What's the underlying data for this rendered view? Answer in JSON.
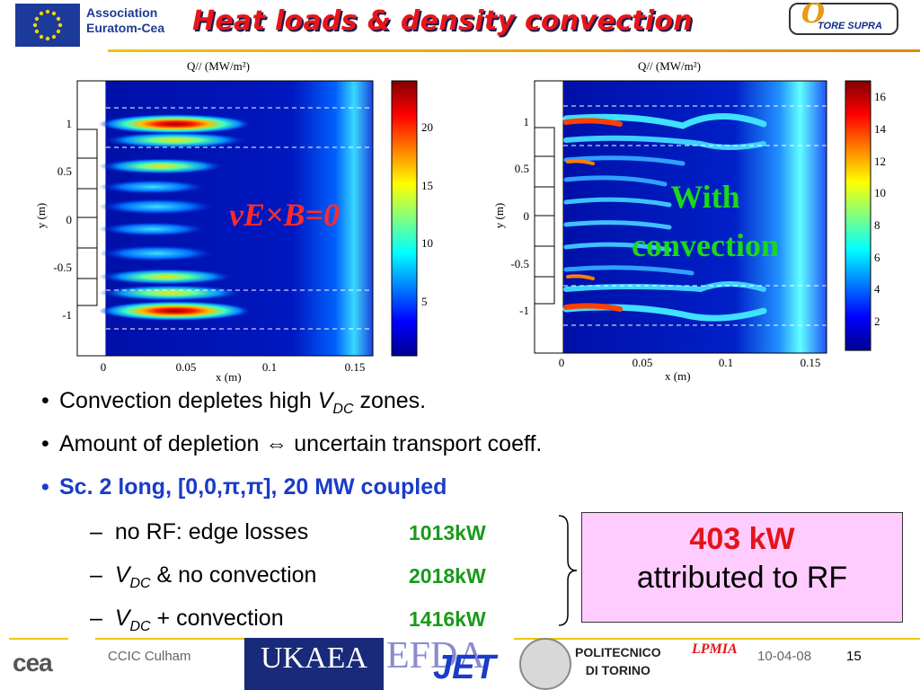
{
  "header": {
    "assoc_line1": "Association",
    "assoc_line2": "Euratom-Cea",
    "title": "Heat loads & density convection",
    "logo_right": "TORE SUPRA"
  },
  "plots": {
    "left": {
      "title": "Q// (MW/m²)",
      "xlabel": "x (m)",
      "ylabel": "y (m)",
      "xticks": [
        "0",
        "0.05",
        "0.1",
        "0.15"
      ],
      "yticks": [
        "1",
        "0.5",
        "0",
        "-0.5",
        "-1"
      ],
      "colorbar_ticks": [
        "20",
        "15",
        "10",
        "5"
      ],
      "annotation": "vE×B=0"
    },
    "right": {
      "title": "Q// (MW/m²)",
      "xlabel": "x (m)",
      "ylabel": "y (m)",
      "xticks": [
        "0",
        "0.05",
        "0.1",
        "0.15"
      ],
      "yticks": [
        "1",
        "0.5",
        "0",
        "-0.5",
        "-1"
      ],
      "colorbar_ticks": [
        "16",
        "14",
        "12",
        "10",
        "8",
        "6",
        "4",
        "2"
      ],
      "annotation_line1": "With",
      "annotation_line2": "convection"
    }
  },
  "bullets": {
    "b1_pre": "Convection depletes high ",
    "b1_v": "V",
    "b1_sub": "DC",
    "b1_post": " zones.",
    "b2": "Amount of depletion ⇔ uncertain transport coeff.",
    "b3": "Sc. 2 long, [0,0,π,π], 20 MW coupled"
  },
  "subitems": [
    {
      "dash": "–",
      "label": "no RF: edge losses",
      "value": "1013kW"
    },
    {
      "dash": "–",
      "v": "V",
      "sub": "DC",
      "label": " & no convection",
      "value": "2018kW"
    },
    {
      "dash": "–",
      "v": "V",
      "sub": "DC",
      "label": " + convection",
      "value": "1416kW"
    }
  ],
  "callout": {
    "line1": "403 kW",
    "line2": "attributed to RF"
  },
  "footer": {
    "cea": "cea",
    "conference": "CCIC Culham",
    "ukaea": "UKAEA",
    "efda": "EFDA",
    "jet": "JET",
    "politecnico_line1": "POLITECNICO",
    "politecnico_line2": "DI TORINO",
    "lpmia": "LPMIA",
    "date": "10-04-08",
    "page": "15"
  },
  "colors": {
    "title_red": "#e8151b",
    "bullet_blue": "#1a3cc8",
    "value_green": "#1a9a1a",
    "callout_bg": "#ffccff"
  }
}
